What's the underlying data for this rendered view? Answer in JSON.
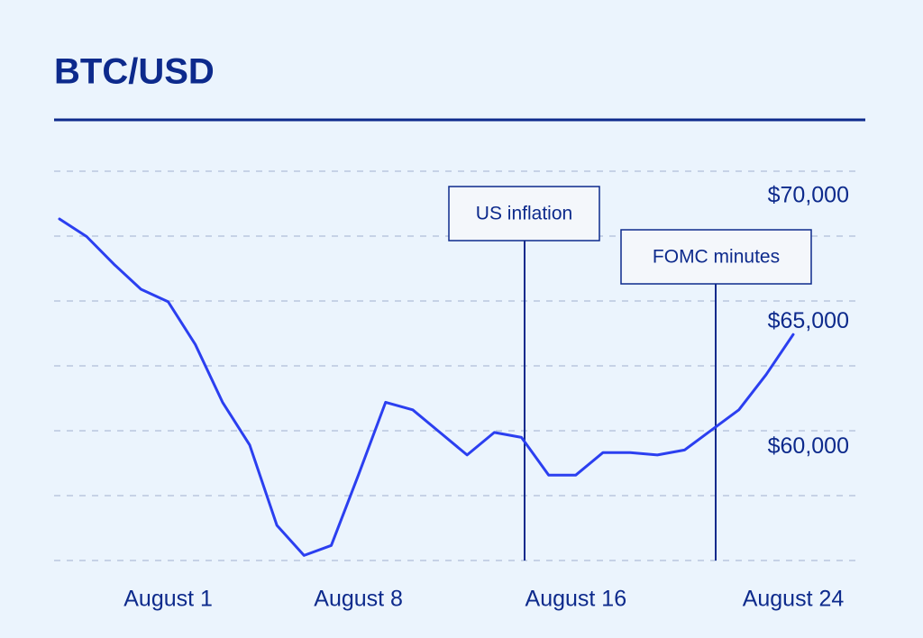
{
  "chart_data": {
    "type": "line",
    "title": "BTC/USD",
    "categories": [
      null,
      null,
      null,
      null,
      "August 1",
      null,
      null,
      null,
      null,
      null,
      null,
      "August 8",
      null,
      null,
      null,
      null,
      null,
      null,
      null,
      "August 16",
      null,
      null,
      null,
      null,
      null,
      null,
      null,
      "August 24"
    ],
    "values": [
      69100,
      68400,
      67300,
      66300,
      65800,
      64100,
      61800,
      60100,
      56900,
      55700,
      56100,
      58900,
      61800,
      61500,
      60600,
      59700,
      60600,
      60400,
      58900,
      58900,
      59800,
      59800,
      59700,
      59900,
      60700,
      61500,
      62900,
      64500
    ],
    "color": "#2b3ff0",
    "ylim": [
      55500,
      71000
    ],
    "yticks": [
      {
        "value": 60000,
        "label": "$60,000"
      },
      {
        "value": 65000,
        "label": "$65,000"
      },
      {
        "value": 70000,
        "label": "$70,000"
      }
    ],
    "annotations": [
      "US inflation",
      "FOMC minutes"
    ]
  }
}
